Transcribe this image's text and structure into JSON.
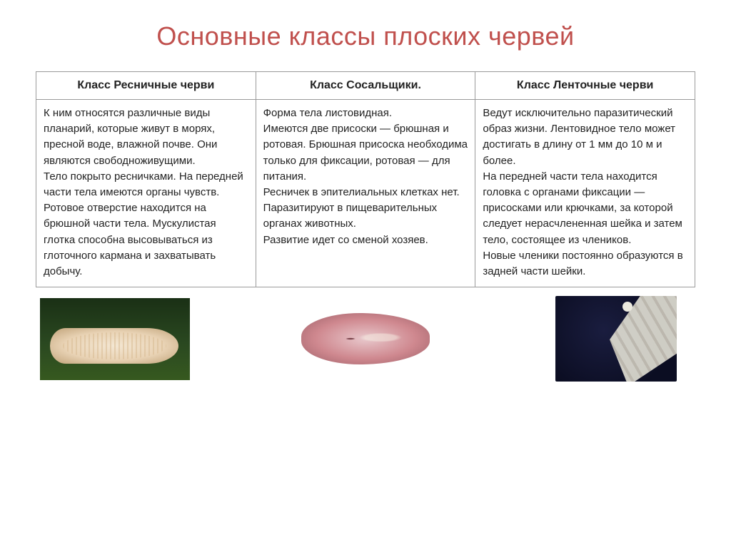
{
  "title": "Основные классы плоских червей",
  "columns": [
    {
      "header": "Класс Ресничные черви",
      "text": "К ним относятся различные виды планарий, которые живут в морях, пресной воде, влажной почве. Они являются свободноживущими.\nТело покрыто ресничками. На передней части тела имеются органы чувств. Ротовое отверстие находится на брюшной части тела. Мускулистая глотка способна высовываться из глоточного кармана и захватывать добычу."
    },
    {
      "header": "Класс Сосальщики.",
      "text": "Форма тела листовидная.\nИмеются две присоски — брюшная и ротовая. Брюшная присоска необходима только для фиксации, ротовая — для питания.\nРесничек в эпителиальных клетках нет.\nПаразитируют в пищеварительных органах животных.\nРазвитие идет со сменой хозяев."
    },
    {
      "header": "Класс Ленточные черви",
      "text": "Ведут исключительно паразитический образ жизни. Лентовидное тело может достигать в длину от 1 мм до 10 м и более.\nНа передней части тела находится головка с органами фиксации — присосками или крючками, за которой следует нерасчлененная шейка и затем тело, состоящее из члеников.\nНовые членики постоянно образуются в задней части шейки."
    }
  ],
  "colors": {
    "title": "#c0504d",
    "border": "#9a9a9a",
    "text": "#222222",
    "background": "#ffffff"
  },
  "images": [
    {
      "name": "planaria",
      "caption": "Ресничный червь (планария)"
    },
    {
      "name": "fluke",
      "caption": "Сосальщик"
    },
    {
      "name": "tapeworm",
      "caption": "Ленточный червь"
    }
  ]
}
